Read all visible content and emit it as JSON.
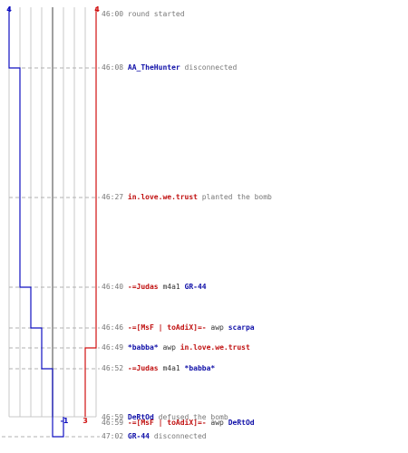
{
  "axis": {
    "top_blue_count": "4",
    "top_red_count": "4",
    "bottom_blue_count": "-1",
    "bottom_red_count": "3"
  },
  "colors": {
    "blue": "#1010c0",
    "red": "#d01010",
    "grid": "#c8c8c8",
    "dash": "#b0b0b0",
    "zero_line": "#777777"
  },
  "events": [
    {
      "time": "46:00",
      "parts": [
        {
          "text": "round started",
          "role": "txt"
        }
      ]
    },
    {
      "time": "46:08",
      "parts": [
        {
          "text": "AA_TheHunter",
          "role": "p-blue"
        },
        {
          "text": " disconnected",
          "role": "txt"
        }
      ]
    },
    {
      "time": "46:27",
      "parts": [
        {
          "text": "in.love.we.trust",
          "role": "p-red"
        },
        {
          "text": " planted the bomb",
          "role": "txt"
        }
      ]
    },
    {
      "time": "46:40",
      "parts": [
        {
          "text": "-=Judas",
          "role": "p-red"
        },
        {
          "text": " m4a1 ",
          "role": "wpn"
        },
        {
          "text": "GR-44",
          "role": "p-blue"
        }
      ]
    },
    {
      "time": "46:46",
      "parts": [
        {
          "text": "-=[MsF | toAdiX]=-",
          "role": "p-red"
        },
        {
          "text": " awp ",
          "role": "wpn"
        },
        {
          "text": "scarpa",
          "role": "p-blue"
        }
      ]
    },
    {
      "time": "46:49",
      "parts": [
        {
          "text": "*babba*",
          "role": "p-blue"
        },
        {
          "text": " awp ",
          "role": "wpn"
        },
        {
          "text": "in.love.we.trust",
          "role": "p-red"
        }
      ]
    },
    {
      "time": "46:52",
      "parts": [
        {
          "text": "-=Judas",
          "role": "p-red"
        },
        {
          "text": " m4a1 ",
          "role": "wpn"
        },
        {
          "text": "*babba*",
          "role": "p-blue"
        }
      ]
    },
    {
      "time": "46:59",
      "parts": [
        {
          "text": "DeRtOd",
          "role": "p-blue"
        },
        {
          "text": " defused the bomb",
          "role": "txt"
        }
      ]
    },
    {
      "time": "46:59",
      "parts": [
        {
          "text": "-=[MsF | toAdiX]=-",
          "role": "p-red"
        },
        {
          "text": " awp ",
          "role": "wpn"
        },
        {
          "text": "DeRtOd",
          "role": "p-blue"
        }
      ]
    },
    {
      "time": "47:02",
      "parts": [
        {
          "text": "GR-44",
          "role": "p-blue"
        },
        {
          "text": " disconnected",
          "role": "txt"
        }
      ]
    }
  ],
  "blue_alive_after_event": [
    4,
    3,
    3,
    2,
    1,
    1,
    0,
    0,
    0,
    -1
  ],
  "red_alive_after_event": [
    4,
    4,
    4,
    4,
    4,
    3,
    3,
    3,
    3,
    3
  ]
}
